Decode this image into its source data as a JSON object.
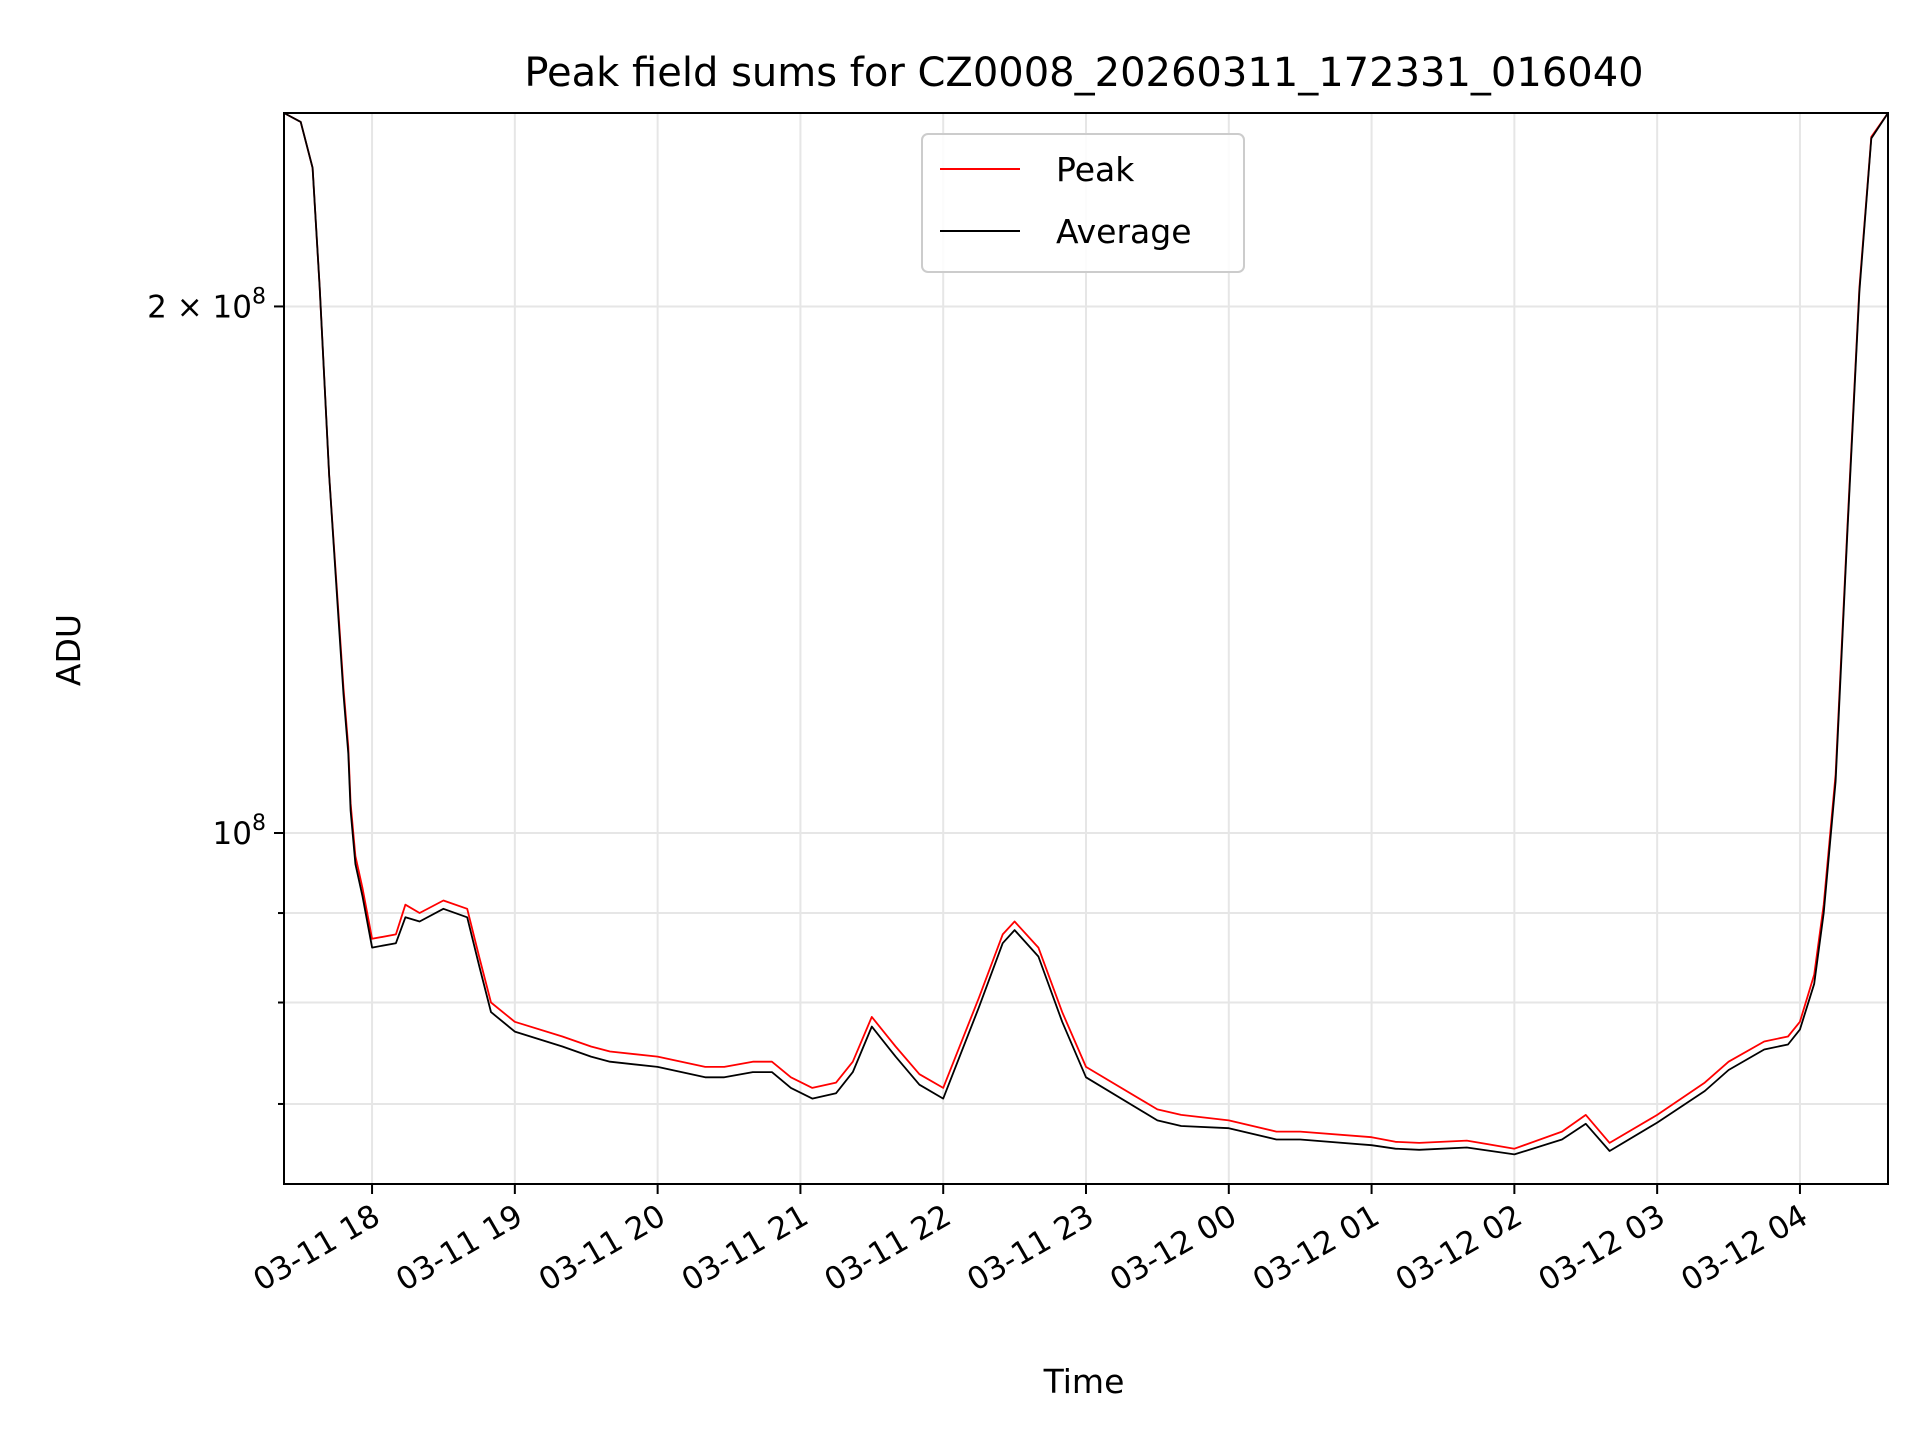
{
  "chart_data": {
    "type": "line",
    "title": "Peak field sums for CZ0008_20260311_172331_016040",
    "xlabel": "Time",
    "ylabel": "ADU",
    "y_scale": "log",
    "ylim": [
      63000000,
      258000000
    ],
    "xlim": [
      "2026-03-11 17:23",
      "2026-03-12 04:37"
    ],
    "grid": true,
    "legend": {
      "placement": "top-center"
    },
    "x_ticks": [
      {
        "label": "03-11 18",
        "t": "2026-03-11 18:00"
      },
      {
        "label": "03-11 19",
        "t": "2026-03-11 19:00"
      },
      {
        "label": "03-11 20",
        "t": "2026-03-11 20:00"
      },
      {
        "label": "03-11 21",
        "t": "2026-03-11 21:00"
      },
      {
        "label": "03-11 22",
        "t": "2026-03-11 22:00"
      },
      {
        "label": "03-11 23",
        "t": "2026-03-11 23:00"
      },
      {
        "label": "03-12 00",
        "t": "2026-03-12 00:00"
      },
      {
        "label": "03-12 01",
        "t": "2026-03-12 01:00"
      },
      {
        "label": "03-12 02",
        "t": "2026-03-12 02:00"
      },
      {
        "label": "03-12 03",
        "t": "2026-03-12 03:00"
      },
      {
        "label": "03-12 04",
        "t": "2026-03-12 04:00"
      }
    ],
    "y_ticks_major": [
      {
        "value": 100000000,
        "mantissa": "",
        "exponent": "8"
      },
      {
        "value": 200000000,
        "mantissa": "2",
        "exponent": "8"
      }
    ],
    "y_ticks_minor": [
      70000000,
      80000000,
      90000000
    ],
    "series": [
      {
        "name": "Peak",
        "color": "#ff0000",
        "x": [
          "2026-03-11 17:23",
          "2026-03-11 17:30",
          "2026-03-11 17:35",
          "2026-03-11 17:38",
          "2026-03-11 17:42",
          "2026-03-11 17:46",
          "2026-03-11 17:48",
          "2026-03-11 17:50",
          "2026-03-11 17:51",
          "2026-03-11 17:53",
          "2026-03-11 17:56",
          "2026-03-11 18:00",
          "2026-03-11 18:10",
          "2026-03-11 18:14",
          "2026-03-11 18:20",
          "2026-03-11 18:30",
          "2026-03-11 18:40",
          "2026-03-11 18:45",
          "2026-03-11 18:50",
          "2026-03-11 19:00",
          "2026-03-11 19:20",
          "2026-03-11 19:32",
          "2026-03-11 19:40",
          "2026-03-11 20:00",
          "2026-03-11 20:20",
          "2026-03-11 20:28",
          "2026-03-11 20:40",
          "2026-03-11 20:48",
          "2026-03-11 20:56",
          "2026-03-11 21:05",
          "2026-03-11 21:15",
          "2026-03-11 21:22",
          "2026-03-11 21:30",
          "2026-03-11 21:40",
          "2026-03-11 21:50",
          "2026-03-11 22:00",
          "2026-03-11 22:15",
          "2026-03-11 22:25",
          "2026-03-11 22:30",
          "2026-03-11 22:40",
          "2026-03-11 22:50",
          "2026-03-11 23:00",
          "2026-03-11 23:30",
          "2026-03-11 23:40",
          "2026-03-12 00:00",
          "2026-03-12 00:20",
          "2026-03-12 00:30",
          "2026-03-12 01:00",
          "2026-03-12 01:10",
          "2026-03-12 01:20",
          "2026-03-12 01:40",
          "2026-03-12 02:00",
          "2026-03-12 02:20",
          "2026-03-12 02:30",
          "2026-03-12 02:40",
          "2026-03-12 03:00",
          "2026-03-12 03:20",
          "2026-03-12 03:30",
          "2026-03-12 03:45",
          "2026-03-12 03:55",
          "2026-03-12 04:00",
          "2026-03-12 04:06",
          "2026-03-12 04:10",
          "2026-03-12 04:15",
          "2026-03-12 04:20",
          "2026-03-12 04:25",
          "2026-03-12 04:30",
          "2026-03-12 04:37"
        ],
        "values": [
          258000000,
          255000000,
          240000000,
          205000000,
          160000000,
          133000000,
          121000000,
          112000000,
          104000000,
          97000000,
          93000000,
          87000000,
          87500000,
          91000000,
          90000000,
          91500000,
          90500000,
          85000000,
          80000000,
          78000000,
          76500000,
          75500000,
          75000000,
          74500000,
          73500000,
          73500000,
          74000000,
          74000000,
          72500000,
          71500000,
          72000000,
          74000000,
          78500000,
          75500000,
          72800000,
          71500000,
          80500000,
          87500000,
          89000000,
          86000000,
          79000000,
          73500000,
          69500000,
          69000000,
          68500000,
          67500000,
          67500000,
          67000000,
          66600000,
          66500000,
          66700000,
          66000000,
          67500000,
          69000000,
          66500000,
          69000000,
          72000000,
          74000000,
          76000000,
          76500000,
          78000000,
          83000000,
          91000000,
          108000000,
          150000000,
          205000000,
          250000000,
          258000000
        ]
      },
      {
        "name": "Average",
        "color": "#000000",
        "x": [
          "2026-03-11 17:23",
          "2026-03-11 17:30",
          "2026-03-11 17:35",
          "2026-03-11 17:38",
          "2026-03-11 17:42",
          "2026-03-11 17:46",
          "2026-03-11 17:48",
          "2026-03-11 17:50",
          "2026-03-11 17:51",
          "2026-03-11 17:53",
          "2026-03-11 17:56",
          "2026-03-11 18:00",
          "2026-03-11 18:10",
          "2026-03-11 18:14",
          "2026-03-11 18:20",
          "2026-03-11 18:30",
          "2026-03-11 18:40",
          "2026-03-11 18:45",
          "2026-03-11 18:50",
          "2026-03-11 19:00",
          "2026-03-11 19:20",
          "2026-03-11 19:32",
          "2026-03-11 19:40",
          "2026-03-11 20:00",
          "2026-03-11 20:20",
          "2026-03-11 20:28",
          "2026-03-11 20:40",
          "2026-03-11 20:48",
          "2026-03-11 20:56",
          "2026-03-11 21:05",
          "2026-03-11 21:15",
          "2026-03-11 21:22",
          "2026-03-11 21:30",
          "2026-03-11 21:40",
          "2026-03-11 21:50",
          "2026-03-11 22:00",
          "2026-03-11 22:15",
          "2026-03-11 22:25",
          "2026-03-11 22:30",
          "2026-03-11 22:40",
          "2026-03-11 22:50",
          "2026-03-11 23:00",
          "2026-03-11 23:30",
          "2026-03-11 23:40",
          "2026-03-12 00:00",
          "2026-03-12 00:20",
          "2026-03-12 00:30",
          "2026-03-12 01:00",
          "2026-03-12 01:10",
          "2026-03-12 01:20",
          "2026-03-12 01:40",
          "2026-03-12 02:00",
          "2026-03-12 02:20",
          "2026-03-12 02:30",
          "2026-03-12 02:40",
          "2026-03-12 03:00",
          "2026-03-12 03:20",
          "2026-03-12 03:30",
          "2026-03-12 03:45",
          "2026-03-12 03:55",
          "2026-03-12 04:00",
          "2026-03-12 04:06",
          "2026-03-12 04:10",
          "2026-03-12 04:15",
          "2026-03-12 04:20",
          "2026-03-12 04:25",
          "2026-03-12 04:30",
          "2026-03-12 04:37"
        ],
        "values": [
          258000000,
          255000000,
          240000000,
          205000000,
          160000000,
          132000000,
          120000000,
          111000000,
          103000000,
          96000000,
          92000000,
          86000000,
          86500000,
          89500000,
          89000000,
          90500000,
          89500000,
          84000000,
          79000000,
          77000000,
          75500000,
          74500000,
          74000000,
          73500000,
          72500000,
          72500000,
          73000000,
          73000000,
          71500000,
          70500000,
          71000000,
          73000000,
          77500000,
          74500000,
          71800000,
          70500000,
          79500000,
          86500000,
          88000000,
          85000000,
          78000000,
          72500000,
          68500000,
          68000000,
          67800000,
          66800000,
          66800000,
          66300000,
          66000000,
          65900000,
          66100000,
          65500000,
          66800000,
          68200000,
          65800000,
          68300000,
          71200000,
          73200000,
          75200000,
          75700000,
          77200000,
          82000000,
          90000000,
          107000000,
          149000000,
          204000000,
          249500000,
          258000000
        ]
      }
    ]
  }
}
